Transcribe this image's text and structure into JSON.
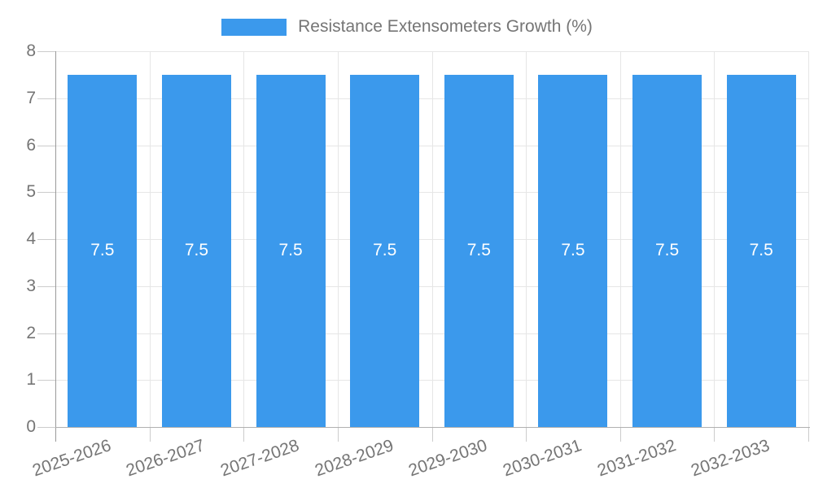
{
  "legend": {
    "label": "Resistance Extensometers Growth (%)"
  },
  "chart_data": {
    "type": "bar",
    "title": "Resistance Extensometers Growth (%)",
    "categories": [
      "2025-2026",
      "2026-2027",
      "2027-2028",
      "2028-2029",
      "2029-2030",
      "2030-2031",
      "2031-2032",
      "2032-2033"
    ],
    "values": [
      7.5,
      7.5,
      7.5,
      7.5,
      7.5,
      7.5,
      7.5,
      7.5
    ],
    "bar_value_labels": [
      "7.5",
      "7.5",
      "7.5",
      "7.5",
      "7.5",
      "7.5",
      "7.5",
      "7.5"
    ],
    "xlabel": "",
    "ylabel": "",
    "ylim": [
      0,
      8
    ],
    "yticks": [
      0,
      1,
      2,
      3,
      4,
      5,
      6,
      7,
      8
    ],
    "grid": true,
    "legend_position": "top",
    "x_label_rotation_deg": -19,
    "colors": {
      "bar": "#3B99EC",
      "bar_label": "#FFFFFF",
      "axis_text": "#757575",
      "grid": "#E6E6E6",
      "axis_line": "#9A9A9A",
      "baseline": "#B0B0B0",
      "tick": "#CCCCCC",
      "background": "#FFFFFF"
    }
  }
}
